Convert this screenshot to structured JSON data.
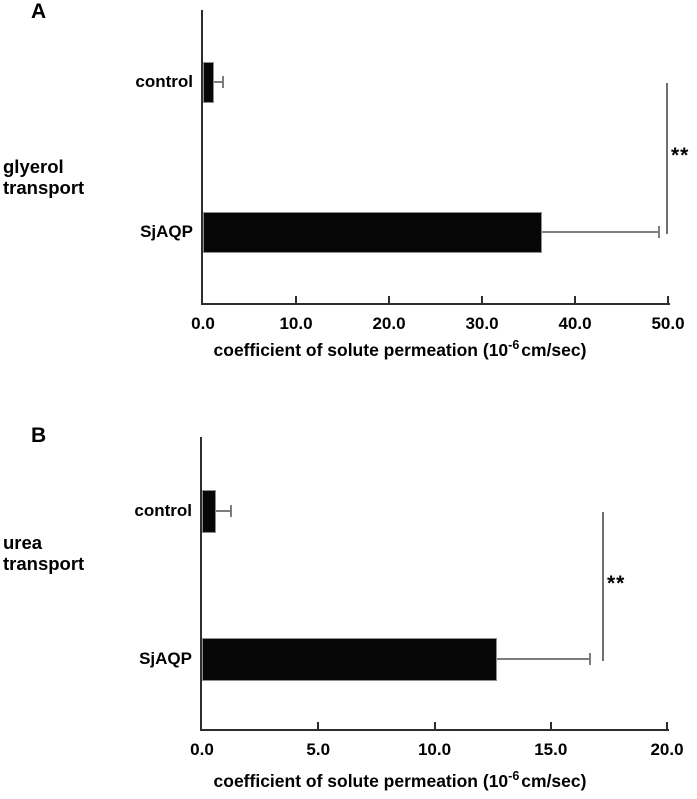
{
  "figure": {
    "panels": [
      {
        "label": "A",
        "row_label_line1": "glyerol",
        "row_label_line2": "transport",
        "significance": "**",
        "xlabel_main": "coefficient of solute permeation (10",
        "xlabel_sup": "-6",
        "xlabel_tail": "cm/sec)"
      },
      {
        "label": "B",
        "row_label_line1": "urea",
        "row_label_line2": "transport",
        "significance": "**",
        "xlabel_main": "coefficient of solute permeation (10",
        "xlabel_sup": "-6",
        "xlabel_tail": "cm/sec)"
      }
    ]
  },
  "chart_data": [
    {
      "type": "bar",
      "orientation": "horizontal",
      "panel": "A",
      "group_label": "glyerol transport",
      "categories": [
        "control",
        "SjAQP"
      ],
      "values": [
        1.2,
        36.5
      ],
      "errors": [
        1.0,
        12.5
      ],
      "x_tick_labels": [
        "0.0",
        "10.0",
        "20.0",
        "30.0",
        "40.0",
        "50.0"
      ],
      "x_ticks": [
        0,
        10,
        20,
        30,
        40,
        50
      ],
      "xlim": [
        0,
        50
      ],
      "xlabel": "coefficient of solute permeation (10^-6 cm/sec)",
      "significance": "**",
      "significance_between": [
        "control",
        "SjAQP"
      ],
      "bar_color": "#000000",
      "grid": false,
      "legend": false
    },
    {
      "type": "bar",
      "orientation": "horizontal",
      "panel": "B",
      "group_label": "urea transport",
      "categories": [
        "control",
        "SjAQP"
      ],
      "values": [
        0.6,
        12.7
      ],
      "errors": [
        0.65,
        4.0
      ],
      "x_tick_labels": [
        "0.0",
        "5.0",
        "10.0",
        "15.0",
        "20.0"
      ],
      "x_ticks": [
        0,
        5,
        10,
        15,
        20
      ],
      "xlim": [
        0,
        20
      ],
      "xlabel": "coefficient of solute permeation (10^-6 cm/sec)",
      "significance": "**",
      "significance_between": [
        "control",
        "SjAQP"
      ],
      "bar_color": "#000000",
      "grid": false,
      "legend": false
    }
  ]
}
